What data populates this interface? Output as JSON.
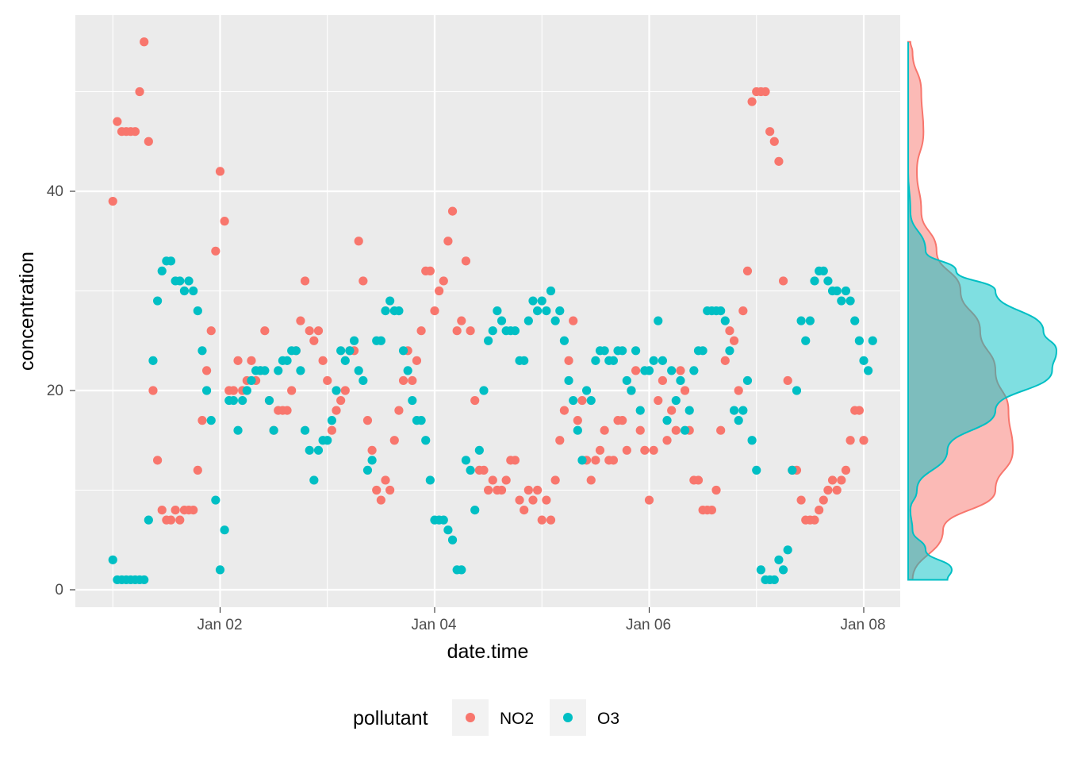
{
  "chart_data": [
    {
      "type": "scatter",
      "xlabel": "date.time",
      "ylabel": "concentration",
      "x_ticks": [
        "Jan 02",
        "Jan 04",
        "Jan 06",
        "Jan 08"
      ],
      "y_ticks": [
        "0",
        "20",
        "40"
      ],
      "xlim": [
        "Dec 31 22:00",
        "Jan 08 07:00"
      ],
      "ylim": [
        -1.8,
        57.8
      ],
      "grid": true,
      "legend": {
        "title": "pollutant",
        "position": "bottom",
        "entries": [
          "NO2",
          "O3"
        ]
      },
      "colors": {
        "NO2": "#F8766D",
        "O3": "#00BFC4",
        "panel": "#EBEBEB",
        "grid": "#FFFFFF"
      },
      "x_start": "Jan 01 00:00",
      "x_step_hours": 1,
      "series": [
        {
          "name": "NO2",
          "values": [
            39,
            47,
            46,
            46,
            46,
            46,
            50,
            55,
            45,
            20,
            13,
            8,
            7,
            7,
            8,
            7,
            8,
            8,
            8,
            12,
            17,
            22,
            26,
            34,
            42,
            37,
            20,
            20,
            23,
            20,
            21,
            23,
            21,
            22,
            26,
            19,
            16,
            18,
            18,
            18,
            20,
            24,
            27,
            31,
            26,
            25,
            26,
            23,
            21,
            16,
            18,
            19,
            20,
            24,
            24,
            35,
            31,
            17,
            14,
            10,
            9,
            11,
            10,
            15,
            18,
            21,
            24,
            21,
            23,
            26,
            32,
            32,
            28,
            30,
            31,
            35,
            38,
            26,
            27,
            33,
            26,
            19,
            12,
            12,
            10,
            11,
            10,
            10,
            11,
            13,
            13,
            9,
            8,
            10,
            9,
            10,
            7,
            9,
            7,
            11,
            15,
            18,
            23,
            27,
            17,
            19,
            13,
            11,
            13,
            14,
            16,
            13,
            13,
            17,
            17,
            14,
            20,
            22,
            16,
            14,
            9,
            14,
            19,
            21,
            15,
            18,
            16,
            22,
            20,
            16,
            11,
            11,
            8,
            8,
            8,
            10,
            16,
            23,
            26,
            25,
            20,
            28,
            32,
            49,
            50,
            50,
            50,
            46,
            45,
            43,
            31,
            21,
            12,
            12,
            9,
            7,
            7,
            7,
            8,
            9,
            10,
            11,
            10,
            11,
            12,
            15,
            18,
            18,
            15
          ]
        },
        {
          "name": "O3",
          "values": [
            3,
            1,
            1,
            1,
            1,
            1,
            1,
            1,
            7,
            23,
            29,
            32,
            33,
            33,
            31,
            31,
            30,
            31,
            30,
            28,
            24,
            20,
            17,
            9,
            2,
            6,
            19,
            19,
            16,
            19,
            20,
            21,
            22,
            22,
            22,
            19,
            16,
            22,
            23,
            23,
            24,
            24,
            22,
            16,
            14,
            11,
            14,
            15,
            15,
            17,
            20,
            24,
            23,
            24,
            25,
            22,
            21,
            12,
            13,
            25,
            25,
            28,
            29,
            28,
            28,
            24,
            22,
            19,
            17,
            17,
            15,
            11,
            7,
            7,
            7,
            6,
            5,
            2,
            2,
            13,
            12,
            8,
            14,
            20,
            25,
            26,
            28,
            27,
            26,
            26,
            26,
            23,
            23,
            27,
            29,
            28,
            29,
            28,
            30,
            27,
            28,
            25,
            21,
            19,
            16,
            13,
            20,
            19,
            23,
            24,
            24,
            23,
            23,
            24,
            24,
            21,
            20,
            24,
            18,
            22,
            22,
            23,
            27,
            23,
            17,
            22,
            19,
            21,
            16,
            18,
            22,
            24,
            24,
            28,
            28,
            28,
            28,
            27,
            24,
            18,
            17,
            18,
            21,
            15,
            12,
            2,
            1,
            1,
            1,
            3,
            2,
            4,
            12,
            20,
            27,
            25,
            27,
            31,
            32,
            32,
            31,
            30,
            30,
            29,
            30,
            29,
            27,
            25,
            23,
            22,
            25
          ]
        }
      ]
    },
    {
      "type": "area",
      "description_role": "marginal-density",
      "series": [
        {
          "name": "NO2",
          "y": [
            1,
            6,
            10,
            14,
            18,
            22,
            26,
            30,
            34,
            38,
            42,
            46,
            50,
            54,
            55
          ],
          "density": [
            0.002,
            0.016,
            0.04,
            0.048,
            0.046,
            0.04,
            0.033,
            0.024,
            0.013,
            0.006,
            0.004,
            0.007,
            0.006,
            0.002,
            0.001
          ]
        },
        {
          "name": "O3",
          "y": [
            1,
            2,
            4,
            6,
            8,
            10,
            14,
            18,
            22,
            24,
            26,
            30,
            32,
            34,
            38,
            42,
            55
          ],
          "density": [
            0.018,
            0.02,
            0.008,
            0.002,
            0.001,
            0.004,
            0.018,
            0.04,
            0.066,
            0.068,
            0.062,
            0.04,
            0.022,
            0.008,
            0.001,
            0.0,
            0.0
          ]
        }
      ]
    }
  ]
}
